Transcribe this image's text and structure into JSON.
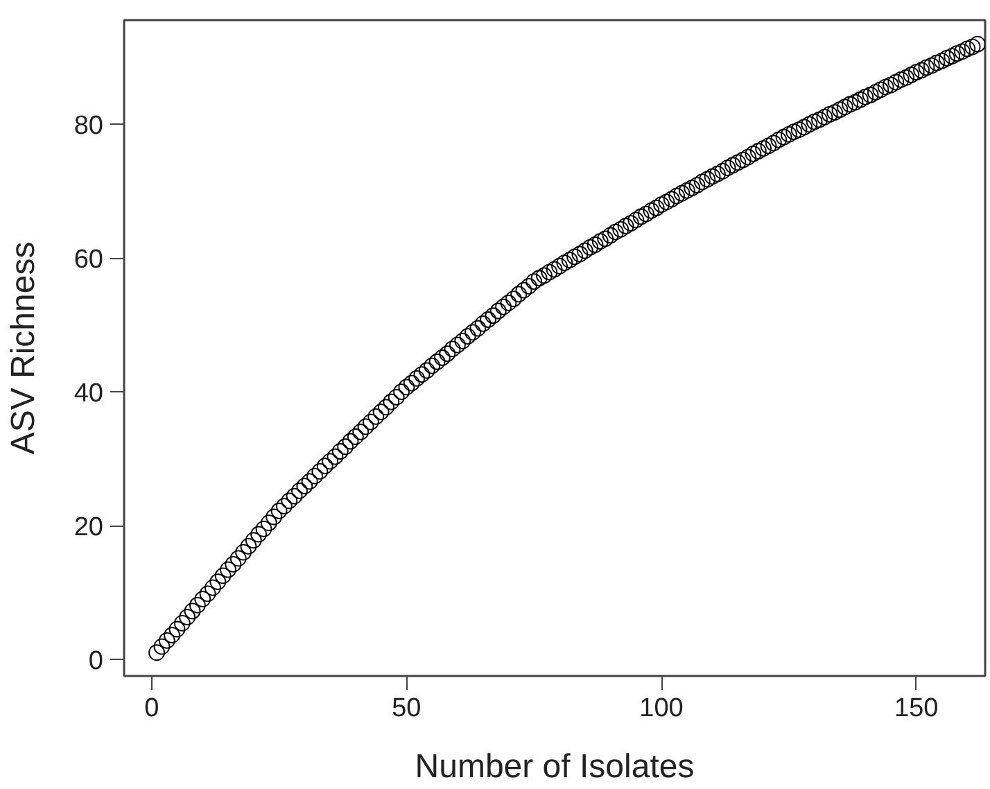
{
  "chart_data": {
    "type": "scatter",
    "xlabel": "Number of Isolates",
    "ylabel": "ASV Richness",
    "marker": "circle",
    "grid": false,
    "xlim": [
      -5.4,
      163.5
    ],
    "ylim": [
      -2.5,
      95.6
    ],
    "xticks": [
      0,
      50,
      100,
      150
    ],
    "yticks": [
      0,
      20,
      40,
      60,
      80
    ],
    "x": [
      1,
      2,
      3,
      4,
      5,
      6,
      7,
      8,
      9,
      10,
      11,
      12,
      13,
      14,
      15,
      16,
      17,
      18,
      19,
      20,
      21,
      22,
      23,
      24,
      25,
      26,
      27,
      28,
      29,
      30,
      31,
      32,
      33,
      34,
      35,
      36,
      37,
      38,
      39,
      40,
      41,
      42,
      43,
      44,
      45,
      46,
      47,
      48,
      49,
      50,
      51,
      52,
      53,
      54,
      55,
      56,
      57,
      58,
      59,
      60,
      61,
      62,
      63,
      64,
      65,
      66,
      67,
      68,
      69,
      70,
      71,
      72,
      73,
      74,
      75,
      76,
      77,
      78,
      79,
      80,
      81,
      82,
      83,
      84,
      85,
      86,
      87,
      88,
      89,
      90,
      91,
      92,
      93,
      94,
      95,
      96,
      97,
      98,
      99,
      100,
      101,
      102,
      103,
      104,
      105,
      106,
      107,
      108,
      109,
      110,
      111,
      112,
      113,
      114,
      115,
      116,
      117,
      118,
      119,
      120,
      121,
      122,
      123,
      124,
      125,
      126,
      127,
      128,
      129,
      130,
      131,
      132,
      133,
      134,
      135,
      136,
      137,
      138,
      139,
      140,
      141,
      142,
      143,
      144,
      145,
      146,
      147,
      148,
      149,
      150,
      151,
      152,
      153,
      154,
      155,
      156,
      157,
      158,
      159,
      160,
      161,
      162
    ],
    "series": [
      {
        "color": "#000000",
        "values": [
          1.0,
          1.9,
          2.8,
          3.6,
          4.5,
          5.4,
          6.3,
          7.2,
          8.1,
          9.0,
          9.8,
          10.7,
          11.6,
          12.5,
          13.4,
          14.2,
          15.1,
          16.0,
          16.9,
          17.8,
          18.7,
          19.5,
          20.4,
          21.3,
          22.2,
          22.9,
          23.7,
          24.4,
          25.2,
          25.9,
          26.6,
          27.4,
          28.1,
          28.9,
          29.6,
          30.3,
          31.1,
          31.8,
          32.6,
          33.3,
          34.0,
          34.8,
          35.5,
          36.3,
          37.0,
          37.7,
          38.5,
          39.2,
          40.0,
          40.7,
          41.3,
          42.0,
          42.6,
          43.2,
          43.9,
          44.5,
          45.1,
          45.7,
          46.4,
          47.0,
          47.6,
          48.3,
          48.9,
          49.5,
          50.2,
          50.8,
          51.4,
          52.1,
          52.7,
          53.3,
          53.9,
          54.6,
          55.2,
          55.8,
          56.5,
          57.0,
          57.4,
          57.9,
          58.3,
          58.8,
          59.3,
          59.7,
          60.2,
          60.6,
          61.1,
          61.6,
          62.0,
          62.5,
          62.9,
          63.4,
          63.9,
          64.3,
          64.8,
          65.2,
          65.7,
          66.2,
          66.6,
          67.1,
          67.5,
          68.0,
          68.4,
          68.8,
          69.3,
          69.7,
          70.1,
          70.5,
          70.9,
          71.4,
          71.8,
          72.2,
          72.6,
          73.0,
          73.5,
          73.9,
          74.3,
          74.7,
          75.1,
          75.6,
          76.0,
          76.4,
          76.8,
          77.2,
          77.7,
          78.1,
          78.5,
          78.9,
          79.2,
          79.6,
          80.0,
          80.4,
          80.7,
          81.1,
          81.5,
          81.8,
          82.2,
          82.6,
          83.0,
          83.3,
          83.7,
          84.1,
          84.4,
          84.8,
          85.2,
          85.6,
          85.9,
          86.3,
          86.7,
          87.0,
          87.4,
          87.8,
          88.1,
          88.5,
          88.8,
          89.2,
          89.5,
          89.9,
          90.2,
          90.6,
          90.9,
          91.3,
          91.6,
          92.0
        ]
      }
    ]
  }
}
